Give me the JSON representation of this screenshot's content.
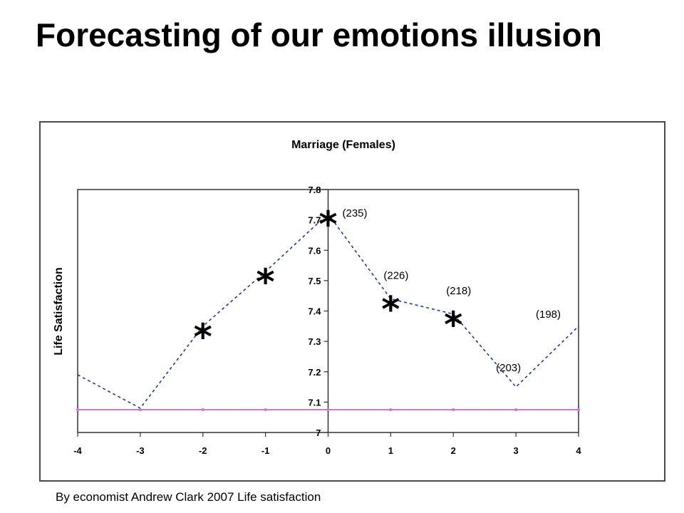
{
  "slide": {
    "title": "Forecasting of our emotions illusion",
    "caption": "By economist Andrew Clark 2007 Life satisfaction"
  },
  "chart_data": {
    "type": "line",
    "title": "Marriage (Females)",
    "xlabel": "",
    "ylabel": "Life Satisfaction",
    "xlim": [
      -4,
      4
    ],
    "ylim": [
      7,
      7.8
    ],
    "x_ticks": [
      "-4",
      "-3",
      "-2",
      "-1",
      "0",
      "1",
      "2",
      "3",
      "4"
    ],
    "y_ticks": [
      "7",
      "7.1",
      "7.2",
      "7.3",
      "7.4",
      "7.5",
      "7.6",
      "7.7",
      "7.8"
    ],
    "grid": false,
    "series": [
      {
        "style": "dashed",
        "color": "#1f3a93",
        "x": [
          -4,
          -3,
          -2,
          -1,
          0,
          1,
          2,
          3,
          4
        ],
        "values": [
          7.19,
          7.08,
          7.35,
          7.53,
          7.72,
          7.44,
          7.39,
          7.15,
          7.35
        ],
        "significance_markers": [
          -2,
          -1,
          0,
          1,
          2
        ]
      },
      {
        "style": "solid",
        "color": "#e066e6",
        "x": [
          -4,
          -3,
          -2,
          -1,
          0,
          1,
          2,
          3,
          4
        ],
        "values": [
          7.075,
          7.075,
          7.075,
          7.075,
          7.075,
          7.075,
          7.075,
          7.075,
          7.075
        ]
      }
    ],
    "annotations": [
      {
        "x": 0,
        "y": 7.72,
        "text": "(235)"
      },
      {
        "x": 1,
        "y": 7.44,
        "text": "(226)"
      },
      {
        "x": 2,
        "y": 7.39,
        "text": "(218)"
      },
      {
        "x": 3,
        "y": 7.15,
        "text": "(203)"
      },
      {
        "x": 4,
        "y": 7.35,
        "text": "(198)"
      }
    ],
    "marker_glyph": "*"
  }
}
